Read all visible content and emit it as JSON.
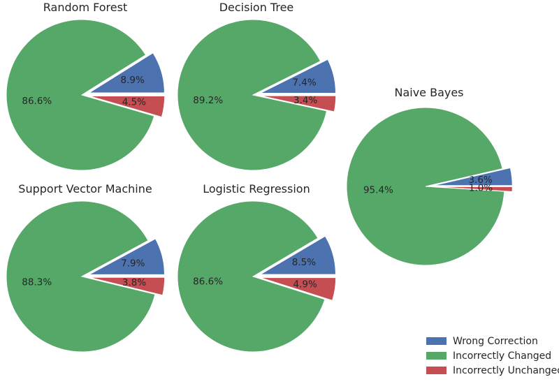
{
  "colors": {
    "wrong_correction": "#4c72b0",
    "incorrectly_changed": "#55a868",
    "incorrectly_unchanged": "#c44e52",
    "text": "#262626"
  },
  "legend": {
    "items": [
      {
        "label": "Wrong Correction",
        "color": "#4c72b0"
      },
      {
        "label": "Incorrectly Changed",
        "color": "#55a868"
      },
      {
        "label": "Incorrectly Unchanged",
        "color": "#c44e52"
      }
    ]
  },
  "chart_data": [
    {
      "type": "pie",
      "title": "Random Forest",
      "categories": [
        "Wrong Correction",
        "Incorrectly Changed",
        "Incorrectly Unchanged"
      ],
      "values": [
        8.9,
        86.6,
        4.5
      ],
      "labels": [
        "8.9%",
        "86.6%",
        "4.5%"
      ],
      "explode": [
        0.1,
        0,
        0.1
      ]
    },
    {
      "type": "pie",
      "title": "Decision Tree",
      "categories": [
        "Wrong Correction",
        "Incorrectly Changed",
        "Incorrectly Unchanged"
      ],
      "values": [
        7.4,
        89.2,
        3.4
      ],
      "labels": [
        "7.4%",
        "89.2%",
        "3.4%"
      ],
      "explode": [
        0.1,
        0,
        0.1
      ]
    },
    {
      "type": "pie",
      "title": "Naive Bayes",
      "categories": [
        "Wrong Correction",
        "Incorrectly Changed",
        "Incorrectly Unchanged"
      ],
      "values": [
        3.6,
        95.4,
        1.0
      ],
      "labels": [
        "3.6%",
        "95.4%",
        "1.0%"
      ],
      "explode": [
        0.1,
        0,
        0.1
      ]
    },
    {
      "type": "pie",
      "title": "Support Vector Machine",
      "categories": [
        "Wrong Correction",
        "Incorrectly Changed",
        "Incorrectly Unchanged"
      ],
      "values": [
        7.9,
        88.3,
        3.8
      ],
      "labels": [
        "7.9%",
        "88.3%",
        "3.8%"
      ],
      "explode": [
        0.1,
        0,
        0.1
      ]
    },
    {
      "type": "pie",
      "title": "Logistic Regression",
      "categories": [
        "Wrong Correction",
        "Incorrectly Changed",
        "Incorrectly Unchanged"
      ],
      "values": [
        8.5,
        86.6,
        4.9
      ],
      "labels": [
        "8.5%",
        "86.6%",
        "4.9%"
      ],
      "explode": [
        0.1,
        0,
        0.1
      ]
    }
  ]
}
